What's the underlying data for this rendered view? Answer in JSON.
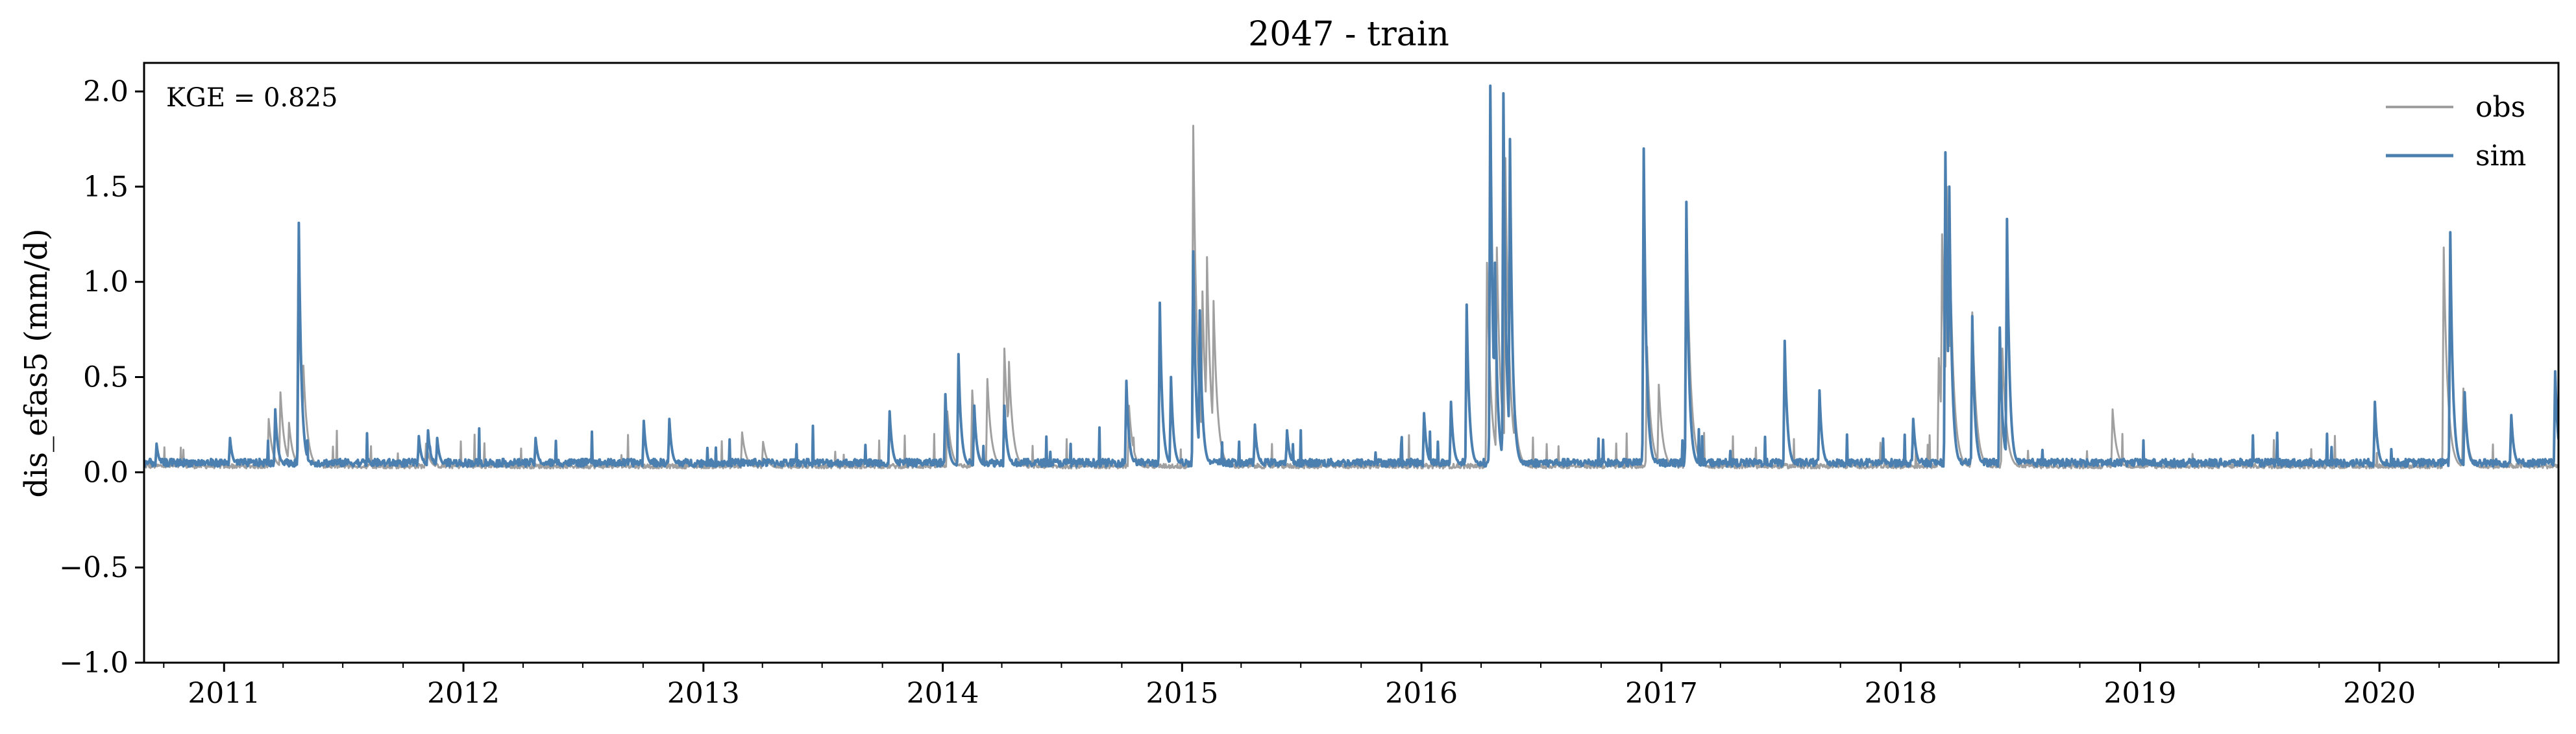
{
  "chart_data": {
    "type": "line",
    "title": "2047 - train",
    "xlabel": "",
    "ylabel": "dis_efas5 (mm/d)",
    "annotation": "KGE = 0.825",
    "xlim": [
      "2010-09-01",
      "2020-09-30"
    ],
    "ylim": [
      -1.0,
      2.15
    ],
    "y_ticks": [
      -1.0,
      -0.5,
      0.0,
      0.5,
      1.0,
      1.5,
      2.0
    ],
    "y_tick_labels": [
      "−1.0",
      "−0.5",
      "0.0",
      "0.5",
      "1.0",
      "1.5",
      "2.0"
    ],
    "x_tick_labels": [
      "2011",
      "2012",
      "2013",
      "2014",
      "2015",
      "2016",
      "2017",
      "2018",
      "2019",
      "2020"
    ],
    "grid": false,
    "legend_position": "top-right",
    "baseline": {
      "obs": 0.02,
      "sim": 0.03
    },
    "series": [
      {
        "name": "obs",
        "color": "#a0a0a0",
        "peaks": [
          [
            "2011-03-10",
            0.28
          ],
          [
            "2011-03-28",
            0.42
          ],
          [
            "2011-04-10",
            0.26
          ],
          [
            "2011-04-24",
            1.05
          ],
          [
            "2011-05-02",
            0.56
          ],
          [
            "2011-11-05",
            0.15
          ],
          [
            "2013-03-01",
            0.21
          ],
          [
            "2013-04-02",
            0.16
          ],
          [
            "2014-01-08",
            0.32
          ],
          [
            "2014-02-15",
            0.43
          ],
          [
            "2014-03-10",
            0.49
          ],
          [
            "2014-04-05",
            0.65
          ],
          [
            "2014-04-12",
            0.58
          ],
          [
            "2014-10-12",
            0.35
          ],
          [
            "2015-01-18",
            1.82
          ],
          [
            "2015-02-01",
            0.95
          ],
          [
            "2015-02-08",
            1.13
          ],
          [
            "2015-02-18",
            0.9
          ],
          [
            "2016-04-10",
            1.1
          ],
          [
            "2016-04-25",
            1.18
          ],
          [
            "2016-05-08",
            1.65
          ],
          [
            "2016-05-22",
            0.35
          ],
          [
            "2016-12-10",
            0.66
          ],
          [
            "2016-12-28",
            0.46
          ],
          [
            "2017-02-08",
            1.42
          ],
          [
            "2018-02-28",
            0.6
          ],
          [
            "2018-03-05",
            1.25
          ],
          [
            "2018-03-12",
            1.5
          ],
          [
            "2018-03-18",
            1.0
          ],
          [
            "2018-04-20",
            0.84
          ],
          [
            "2018-06-05",
            0.65
          ],
          [
            "2018-11-20",
            0.33
          ],
          [
            "2020-04-08",
            1.18
          ],
          [
            "2020-05-08",
            0.44
          ]
        ]
      },
      {
        "name": "sim",
        "color": "#4a7fb0",
        "peaks": [
          [
            "2010-09-20",
            0.15
          ],
          [
            "2011-01-10",
            0.18
          ],
          [
            "2011-03-20",
            0.33
          ],
          [
            "2011-04-25",
            1.31
          ],
          [
            "2011-10-25",
            0.19
          ],
          [
            "2011-11-08",
            0.22
          ],
          [
            "2011-11-22",
            0.18
          ],
          [
            "2012-04-20",
            0.18
          ],
          [
            "2012-10-02",
            0.27
          ],
          [
            "2012-11-10",
            0.28
          ],
          [
            "2013-10-12",
            0.32
          ],
          [
            "2014-01-05",
            0.41
          ],
          [
            "2014-01-25",
            0.62
          ],
          [
            "2014-02-18",
            0.35
          ],
          [
            "2014-04-05",
            0.35
          ],
          [
            "2014-10-08",
            0.48
          ],
          [
            "2014-11-28",
            0.89
          ],
          [
            "2014-12-15",
            0.5
          ],
          [
            "2015-01-18",
            1.16
          ],
          [
            "2015-01-28",
            0.85
          ],
          [
            "2015-04-22",
            0.25
          ],
          [
            "2015-06-10",
            0.22
          ],
          [
            "2016-01-05",
            0.31
          ],
          [
            "2016-02-15",
            0.37
          ],
          [
            "2016-03-10",
            0.88
          ],
          [
            "2016-04-15",
            2.03
          ],
          [
            "2016-04-22",
            1.1
          ],
          [
            "2016-05-05",
            1.99
          ],
          [
            "2016-05-15",
            1.75
          ],
          [
            "2016-12-05",
            1.7
          ],
          [
            "2017-02-08",
            1.42
          ],
          [
            "2017-07-08",
            0.69
          ],
          [
            "2017-08-30",
            0.43
          ],
          [
            "2018-01-20",
            0.28
          ],
          [
            "2018-03-10",
            1.68
          ],
          [
            "2018-03-16",
            1.5
          ],
          [
            "2018-04-20",
            0.82
          ],
          [
            "2018-06-01",
            0.76
          ],
          [
            "2018-06-12",
            1.33
          ],
          [
            "2019-12-25",
            0.37
          ],
          [
            "2020-04-18",
            1.26
          ],
          [
            "2020-05-10",
            0.42
          ],
          [
            "2020-07-20",
            0.3
          ],
          [
            "2020-09-25",
            0.53
          ]
        ]
      }
    ]
  }
}
